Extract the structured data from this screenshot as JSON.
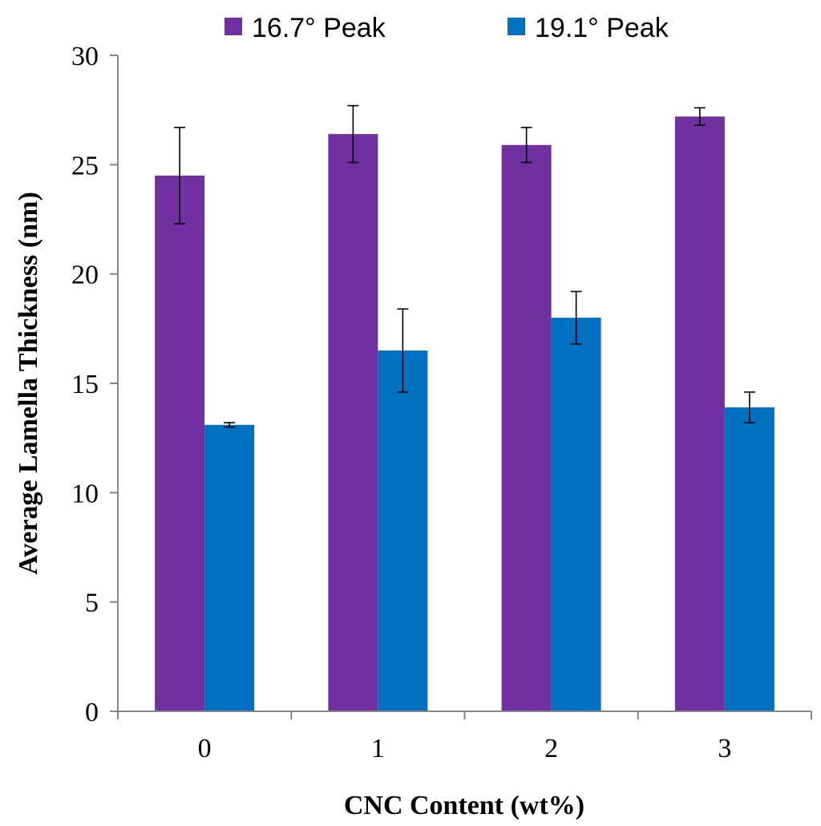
{
  "chart_data": {
    "type": "bar",
    "title": "",
    "xlabel": "CNC Content (wt%)",
    "ylabel": "Average Lamella Thickness (nm)",
    "categories": [
      "0",
      "1",
      "2",
      "3"
    ],
    "ylim": [
      0,
      30
    ],
    "yticks": [
      "0",
      "5",
      "10",
      "15",
      "20",
      "25",
      "30"
    ],
    "grid": false,
    "legend_position": "top",
    "series": [
      {
        "name": "16.7° Peak",
        "color": "#7030A0",
        "values": [
          24.5,
          26.4,
          25.9,
          27.2
        ],
        "errors": [
          2.2,
          1.3,
          0.8,
          0.4
        ]
      },
      {
        "name": "19.1° Peak",
        "color": "#0070C0",
        "values": [
          13.1,
          16.5,
          18.0,
          13.9
        ],
        "errors": [
          0.1,
          1.9,
          1.2,
          0.7
        ]
      }
    ]
  }
}
